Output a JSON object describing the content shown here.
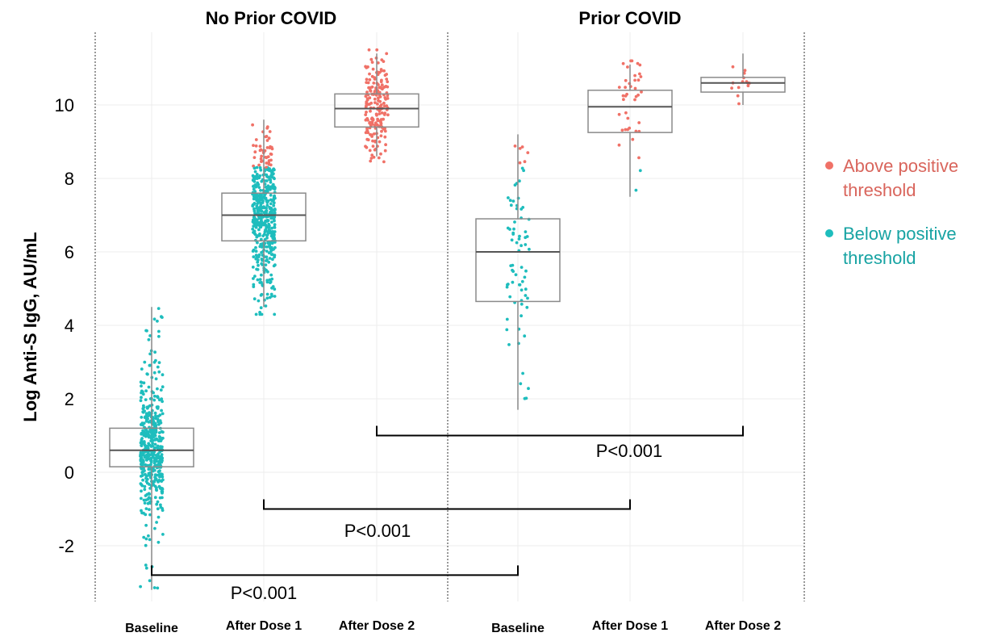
{
  "chart_data": {
    "type": "scatter",
    "subtype": "box-and-jitter",
    "ylabel": "Log Anti-S IgG, AU/mL",
    "ylim": [
      -3.4,
      11.7
    ],
    "yticks": [
      -2,
      0,
      2,
      4,
      6,
      8,
      10
    ],
    "grid": true,
    "legend_position": "right",
    "panels": [
      {
        "title": "No Prior COVID",
        "groups": [
          {
            "label": "Baseline",
            "q1": 0.15,
            "median": 0.6,
            "q3": 1.2,
            "whisker_low": -3.2,
            "whisker_high": 4.5
          },
          {
            "label": "After Dose 1",
            "q1": 6.3,
            "median": 7.0,
            "q3": 7.6,
            "whisker_low": 4.5,
            "whisker_high": 9.6
          },
          {
            "label": "After Dose 2",
            "q1": 9.4,
            "median": 9.9,
            "q3": 10.3,
            "whisker_low": 8.6,
            "whisker_high": 11.4
          }
        ]
      },
      {
        "title": "Prior COVID",
        "groups": [
          {
            "label": "Baseline",
            "q1": 4.65,
            "median": 6.0,
            "q3": 6.9,
            "whisker_low": 1.7,
            "whisker_high": 9.2
          },
          {
            "label": "After Dose 1",
            "q1": 9.25,
            "median": 9.95,
            "q3": 10.4,
            "whisker_low": 7.5,
            "whisker_high": 11.1
          },
          {
            "label": "After Dose 2",
            "q1": 10.35,
            "median": 10.6,
            "q3": 10.75,
            "whisker_low": 10.0,
            "whisker_high": 11.4
          }
        ]
      }
    ],
    "series": [
      {
        "name": "Above positive threshold",
        "color": "#f07167"
      },
      {
        "name": "Below positive threshold",
        "color": "#1ebdbd"
      }
    ],
    "comparisons": [
      {
        "text": "P<0.001",
        "from_group": "No Prior COVID / After Dose 2",
        "to_group": "Prior COVID / After Dose 2",
        "y": 1.0
      },
      {
        "text": "P<0.001",
        "from_group": "No Prior COVID / After Dose 1",
        "to_group": "Prior COVID / After Dose 1",
        "y": -1.0
      },
      {
        "text": "P<0.001",
        "from_group": "No Prior COVID / Baseline",
        "to_group": "Prior COVID / Baseline",
        "y": -2.8
      }
    ]
  },
  "legend": {
    "above_line1": "Above positive",
    "above_line2": "threshold",
    "below_line1": "Below positive",
    "below_line2": "threshold"
  }
}
